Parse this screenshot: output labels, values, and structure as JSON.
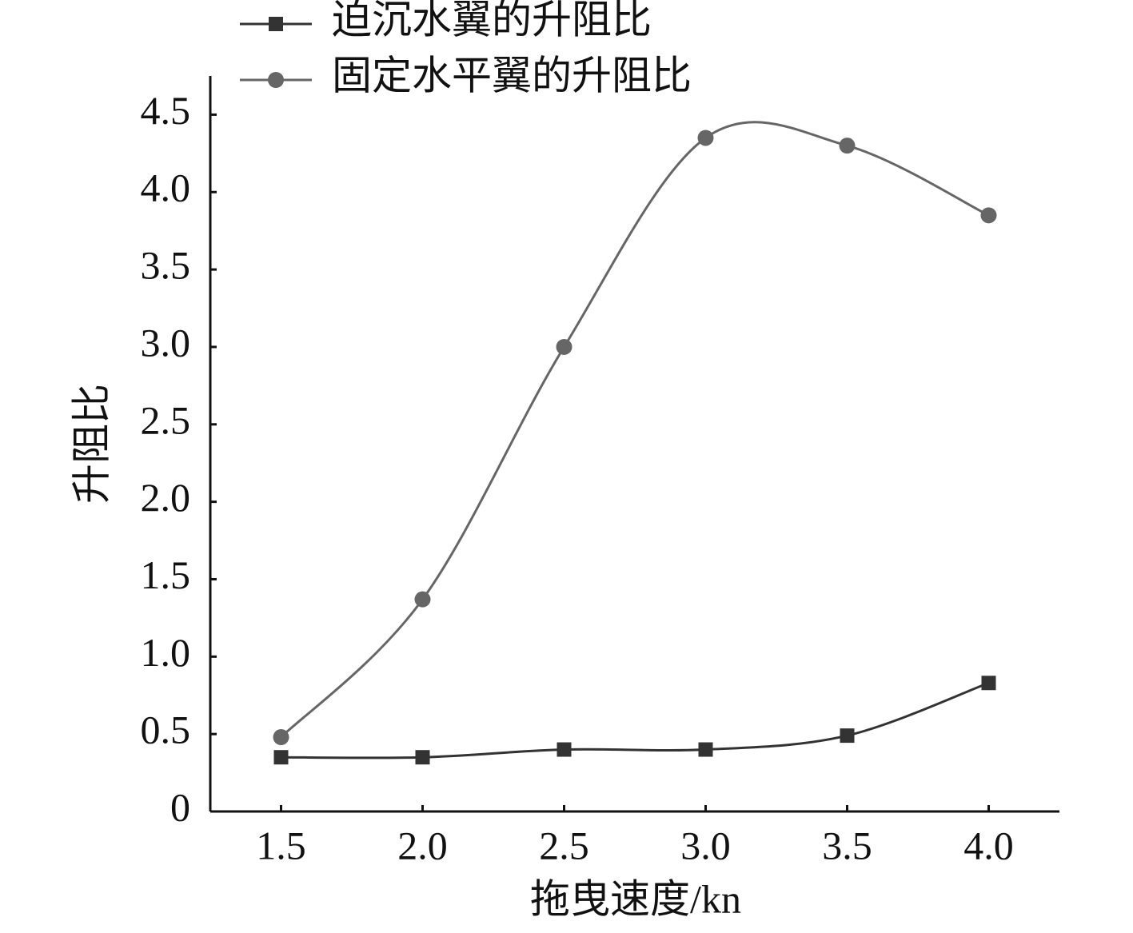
{
  "chart_data": {
    "type": "line",
    "x_label": "拖曳速度/kn",
    "y_label": "升阻比",
    "x": [
      1.5,
      2.0,
      2.5,
      3.0,
      3.5,
      4.0
    ],
    "series": [
      {
        "name": "迫沉水翼的升阻比",
        "color": "#333333",
        "marker": "square",
        "values": [
          0.35,
          0.35,
          0.4,
          0.4,
          0.49,
          0.83
        ]
      },
      {
        "name": "固定水平翼的升阻比",
        "color": "#666666",
        "marker": "circle",
        "values": [
          0.48,
          1.37,
          3.0,
          4.35,
          4.3,
          3.85
        ]
      }
    ],
    "xlim": [
      1.25,
      4.25
    ],
    "xticks": [
      1.5,
      {
        "value": 2,
        "label": "2.0"
      },
      2.5,
      {
        "value": 3,
        "label": "3.0"
      },
      3.5,
      {
        "value": 4,
        "label": "4.0"
      }
    ],
    "ylim": [
      0,
      4.75
    ],
    "yticks": [
      0,
      0.5,
      {
        "value": 1,
        "label": "1.0"
      },
      1.5,
      {
        "value": 2,
        "label": "2.0"
      },
      2.5,
      {
        "value": 3,
        "label": "3.0"
      },
      3.5,
      {
        "value": 4,
        "label": "4.0"
      },
      4.5
    ],
    "smooth": true,
    "legend": "top-left"
  }
}
